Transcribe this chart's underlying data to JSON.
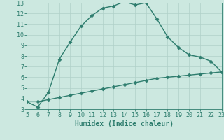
{
  "xlabel": "Humidex (Indice chaleur)",
  "xlim": [
    5,
    23
  ],
  "ylim": [
    3,
    13
  ],
  "xticks": [
    5,
    6,
    7,
    8,
    9,
    10,
    11,
    12,
    13,
    14,
    15,
    16,
    17,
    18,
    19,
    20,
    21,
    22,
    23
  ],
  "yticks": [
    3,
    4,
    5,
    6,
    7,
    8,
    9,
    10,
    11,
    12,
    13
  ],
  "line1_x": [
    5,
    6,
    7,
    8,
    9,
    10,
    11,
    12,
    13,
    14,
    15,
    16,
    17,
    18,
    19,
    20,
    21,
    22,
    23
  ],
  "line1_y": [
    3.7,
    3.2,
    4.6,
    7.7,
    9.3,
    10.8,
    11.8,
    12.5,
    12.7,
    13.1,
    12.8,
    13.0,
    11.5,
    9.8,
    8.8,
    8.1,
    7.9,
    7.5,
    6.5
  ],
  "line2_x": [
    5,
    6,
    7,
    8,
    9,
    10,
    11,
    12,
    13,
    14,
    15,
    16,
    17,
    18,
    19,
    20,
    21,
    22,
    23
  ],
  "line2_y": [
    3.7,
    3.7,
    3.9,
    4.1,
    4.3,
    4.5,
    4.7,
    4.9,
    5.1,
    5.3,
    5.5,
    5.7,
    5.9,
    6.0,
    6.1,
    6.2,
    6.3,
    6.4,
    6.5
  ],
  "line_color": "#2e7d6e",
  "bg_color": "#cce8e0",
  "grid_color": "#b0d0c8",
  "text_color": "#2e7d6e",
  "marker": "D",
  "markersize": 2.5,
  "linewidth": 1.0,
  "xlabel_fontsize": 7,
  "tick_fontsize": 6
}
